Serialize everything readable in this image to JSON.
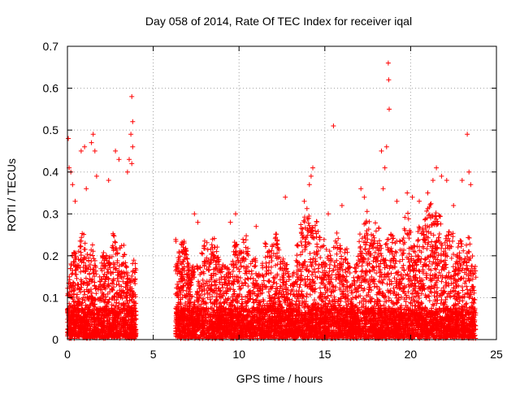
{
  "chart_data": {
    "type": "scatter",
    "title": "Day 058 of 2014, Rate Of TEC Index for receiver iqal",
    "xlabel": "GPS time / hours",
    "ylabel": "ROTI / TECUs",
    "xlim": [
      0,
      25
    ],
    "ylim": [
      0,
      0.7
    ],
    "grid": true,
    "marker": "+",
    "color": "#ff0000",
    "xticks": [
      0,
      5,
      10,
      15,
      20,
      25
    ],
    "xtick_labels": [
      "0",
      "5",
      "10",
      "15",
      "20",
      "25"
    ],
    "yticks": [
      0,
      0.1,
      0.2,
      0.3,
      0.4,
      0.5,
      0.6,
      0.7
    ],
    "ytick_labels": [
      "0",
      "0.1",
      "0.2",
      "0.3",
      "0.4",
      "0.5",
      "0.6",
      "0.7"
    ],
    "series": [
      {
        "name": "ROTI",
        "coverage_hours": [
          [
            0,
            4.0
          ],
          [
            6.3,
            23.8
          ]
        ],
        "typical_range": [
          0.0,
          0.3
        ],
        "points": [
          [
            0.05,
            0.48
          ],
          [
            0.1,
            0.41
          ],
          [
            0.2,
            0.4
          ],
          [
            0.3,
            0.37
          ],
          [
            0.45,
            0.33
          ],
          [
            0.8,
            0.45
          ],
          [
            1.0,
            0.46
          ],
          [
            1.1,
            0.36
          ],
          [
            1.4,
            0.47
          ],
          [
            1.5,
            0.49
          ],
          [
            1.6,
            0.45
          ],
          [
            1.7,
            0.39
          ],
          [
            2.4,
            0.38
          ],
          [
            2.8,
            0.45
          ],
          [
            3.0,
            0.43
          ],
          [
            3.5,
            0.4
          ],
          [
            3.6,
            0.43
          ],
          [
            3.75,
            0.58
          ],
          [
            3.8,
            0.52
          ],
          [
            3.7,
            0.49
          ],
          [
            3.8,
            0.46
          ],
          [
            3.75,
            0.42
          ],
          [
            7.4,
            0.3
          ],
          [
            7.6,
            0.28
          ],
          [
            9.5,
            0.28
          ],
          [
            9.8,
            0.3
          ],
          [
            11.0,
            0.27
          ],
          [
            12.7,
            0.34
          ],
          [
            13.8,
            0.33
          ],
          [
            14.2,
            0.39
          ],
          [
            14.3,
            0.41
          ],
          [
            14.1,
            0.37
          ],
          [
            15.2,
            0.3
          ],
          [
            15.5,
            0.51
          ],
          [
            16.0,
            0.32
          ],
          [
            17.1,
            0.36
          ],
          [
            17.3,
            0.34
          ],
          [
            18.3,
            0.45
          ],
          [
            18.5,
            0.41
          ],
          [
            18.6,
            0.46
          ],
          [
            18.7,
            0.66
          ],
          [
            18.72,
            0.62
          ],
          [
            18.75,
            0.55
          ],
          [
            18.4,
            0.36
          ],
          [
            19.2,
            0.33
          ],
          [
            19.8,
            0.35
          ],
          [
            20.1,
            0.34
          ],
          [
            20.5,
            0.33
          ],
          [
            21.0,
            0.35
          ],
          [
            21.3,
            0.38
          ],
          [
            21.5,
            0.41
          ],
          [
            21.8,
            0.39
          ],
          [
            22.1,
            0.38
          ],
          [
            22.5,
            0.32
          ],
          [
            23.0,
            0.38
          ],
          [
            23.3,
            0.49
          ],
          [
            23.4,
            0.4
          ],
          [
            23.5,
            0.37
          ]
        ]
      }
    ]
  }
}
